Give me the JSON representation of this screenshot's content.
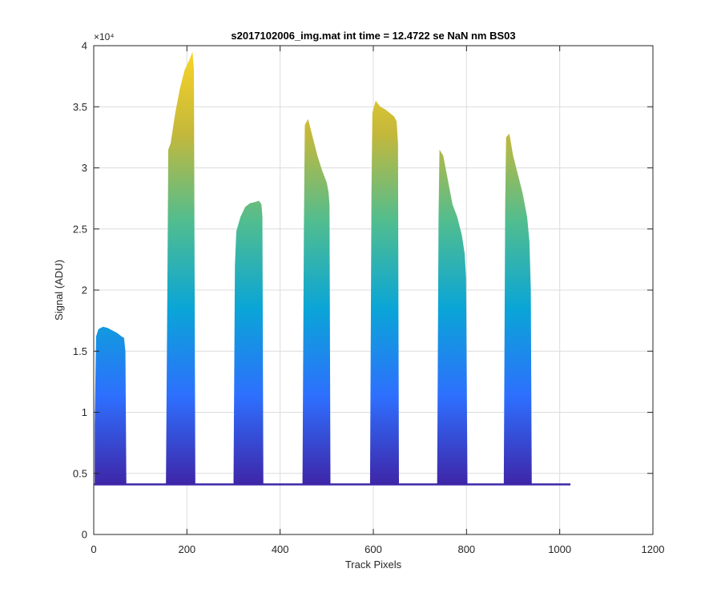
{
  "chart_data": {
    "type": "area",
    "title": "s2017102006_img.mat int time = 12.4722 se  NaN nm BS03",
    "xlabel": "Track Pixels",
    "ylabel": "Signal (ADU)",
    "xlim": [
      0,
      1200
    ],
    "ylim": [
      0,
      40000
    ],
    "x_ticks": [
      0,
      200,
      400,
      600,
      800,
      1000,
      1200
    ],
    "x_tick_labels": [
      "0",
      "200",
      "400",
      "600",
      "800",
      "1000",
      "1200"
    ],
    "y_ticks": [
      0,
      5000,
      10000,
      15000,
      20000,
      25000,
      30000,
      35000,
      40000
    ],
    "y_tick_labels": [
      "0",
      "0.5",
      "1",
      "1.5",
      "2",
      "2.5",
      "3",
      "3.5",
      "4"
    ],
    "y_exponent_label": "×10⁴",
    "grid": true,
    "baseline": 4100,
    "x_end": 1023,
    "colormap": [
      "#3e26a8",
      "#2e6ffe",
      "#0aa5d7",
      "#51bd8f",
      "#c4b83b",
      "#fdd526"
    ],
    "bands": [
      {
        "x": [
          2,
          5,
          10,
          20,
          30,
          40,
          50,
          60,
          65,
          68,
          70
        ],
        "y": [
          9000,
          16200,
          16800,
          17000,
          16900,
          16700,
          16500,
          16200,
          16100,
          15000,
          4200
        ]
      },
      {
        "x": [
          155,
          158,
          160,
          165,
          175,
          185,
          195,
          205,
          212,
          215,
          218
        ],
        "y": [
          4300,
          20000,
          31500,
          32000,
          34500,
          36500,
          38000,
          38800,
          39500,
          38000,
          4300
        ]
      },
      {
        "x": [
          300,
          303,
          306,
          315,
          325,
          335,
          345,
          355,
          360,
          362,
          364
        ],
        "y": [
          4300,
          22000,
          24800,
          26000,
          26800,
          27100,
          27200,
          27300,
          27000,
          26000,
          4300
        ]
      },
      {
        "x": [
          448,
          451,
          453,
          460,
          470,
          480,
          490,
          500,
          504,
          506,
          508
        ],
        "y": [
          4300,
          25000,
          33500,
          34000,
          32500,
          31000,
          29800,
          28800,
          28000,
          27000,
          4300
        ]
      },
      {
        "x": [
          593,
          596,
          598,
          605,
          615,
          625,
          635,
          645,
          650,
          653,
          655
        ],
        "y": [
          4300,
          28000,
          34500,
          35500,
          35000,
          34800,
          34500,
          34200,
          33800,
          32000,
          4300
        ]
      },
      {
        "x": [
          737,
          740,
          742,
          750,
          760,
          770,
          780,
          790,
          796,
          799,
          802
        ],
        "y": [
          4300,
          26000,
          31500,
          31000,
          29000,
          27000,
          26000,
          24500,
          23000,
          21000,
          4300
        ]
      },
      {
        "x": [
          880,
          883,
          885,
          892,
          900,
          910,
          920,
          930,
          935,
          938,
          940
        ],
        "y": [
          4300,
          27000,
          32500,
          32800,
          31000,
          29500,
          28000,
          26000,
          24000,
          20000,
          4300
        ]
      }
    ]
  }
}
